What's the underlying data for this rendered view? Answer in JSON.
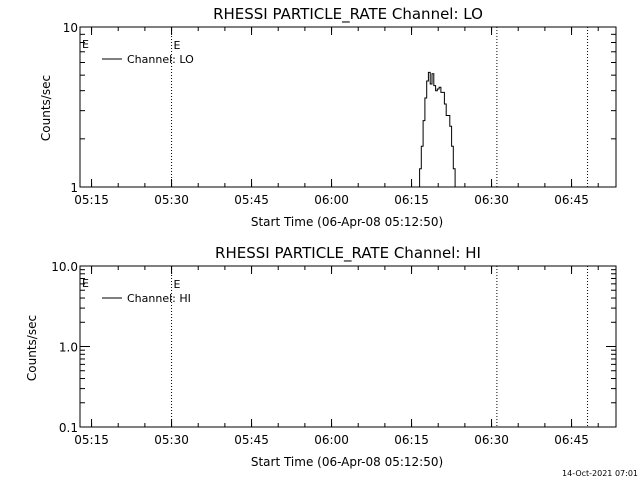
{
  "chart_data": [
    {
      "type": "line",
      "title": "RHESSI PARTICLE_RATE Channel: LO",
      "xlabel": "Start Time (06-Apr-08 05:12:50)",
      "ylabel": "Counts/sec",
      "yscale": "log",
      "ylim": [
        1,
        10
      ],
      "xlim": [
        "05:12:50",
        "06:53:20"
      ],
      "x_ticks": [
        "05:15",
        "05:30",
        "05:45",
        "06:00",
        "06:15",
        "06:30",
        "06:45"
      ],
      "y_ticks": [
        "1",
        "10"
      ],
      "legend": "top-left",
      "event_markers": [
        {
          "time": "05:30",
          "label": "E"
        },
        {
          "time": "06:31",
          "label": ""
        },
        {
          "time": "06:48",
          "label": ""
        }
      ],
      "edge_label": "E",
      "series": [
        {
          "name": "Channel: LO",
          "x": [
            "06:16:20",
            "06:16:40",
            "06:17:00",
            "06:17:20",
            "06:17:40",
            "06:18:00",
            "06:18:20",
            "06:18:40",
            "06:19:00",
            "06:19:20",
            "06:19:40",
            "06:20:00",
            "06:20:20",
            "06:20:40",
            "06:21:00",
            "06:21:20",
            "06:21:40",
            "06:22:00",
            "06:22:20",
            "06:22:40",
            "06:23:00",
            "06:23:20",
            "06:23:40"
          ],
          "y": [
            1.0,
            1.3,
            1.8,
            2.6,
            3.6,
            4.6,
            5.2,
            4.4,
            5.1,
            4.3,
            4.0,
            4.1,
            4.2,
            3.9,
            3.9,
            3.3,
            2.8,
            2.8,
            2.4,
            1.8,
            1.3,
            1.0,
            1.0
          ]
        }
      ]
    },
    {
      "type": "line",
      "title": "RHESSI PARTICLE_RATE Channel: HI",
      "xlabel": "Start Time (06-Apr-08 05:12:50)",
      "ylabel": "Counts/sec",
      "yscale": "log",
      "ylim": [
        0.1,
        10
      ],
      "xlim": [
        "05:12:50",
        "06:53:20"
      ],
      "x_ticks": [
        "05:15",
        "05:30",
        "05:45",
        "06:00",
        "06:15",
        "06:30",
        "06:45"
      ],
      "y_ticks": [
        "0.1",
        "1.0",
        "10.0"
      ],
      "legend": "top-left",
      "event_markers": [
        {
          "time": "05:30",
          "label": "E"
        },
        {
          "time": "06:31",
          "label": ""
        },
        {
          "time": "06:48",
          "label": ""
        }
      ],
      "edge_label": "E",
      "series": [
        {
          "name": "Channel: HI",
          "x": [],
          "y": []
        }
      ]
    }
  ],
  "footer": {
    "timestamp": "14-Oct-2021 07:01"
  }
}
